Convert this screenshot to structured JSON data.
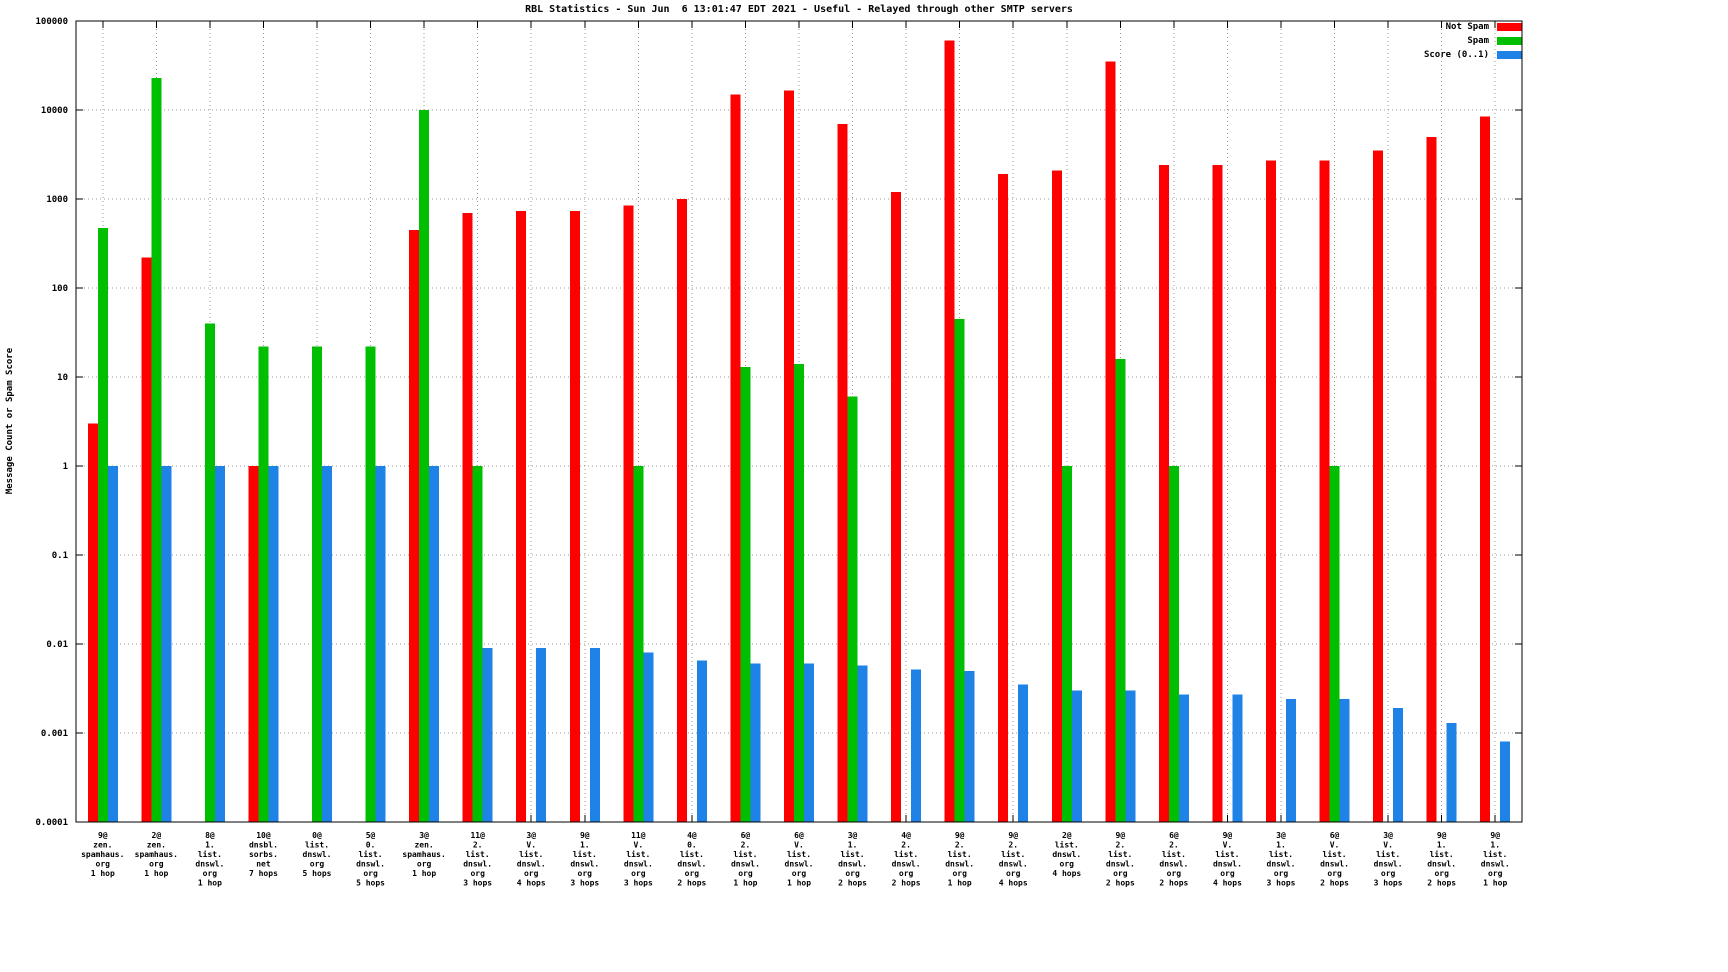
{
  "chart_data": {
    "type": "bar",
    "title": "RBL Statistics - Sun Jun  6 13:01:47 EDT 2021 - Useful - Relayed through other SMTP servers",
    "ylabel": "Message Count or Spam Score",
    "xlabel": "",
    "y_scale": "log",
    "ylim": [
      0.0001,
      100000
    ],
    "y_ticks": [
      "100000",
      "10000",
      "1000",
      "100",
      "10",
      "1",
      "0.1",
      "0.01",
      "0.001",
      "0.0001"
    ],
    "grid": true,
    "legend_position": "top-right",
    "categories": [
      [
        "9@",
        "zen.",
        "spamhaus.",
        "org",
        "1 hop"
      ],
      [
        "2@",
        "zen.",
        "spamhaus.",
        "org",
        "1 hop"
      ],
      [
        "8@",
        "1.",
        "list.",
        "dnswl.",
        "org",
        "1 hop"
      ],
      [
        "10@",
        "dnsbl.",
        "sorbs.",
        "net",
        "7 hops"
      ],
      [
        "0@",
        "list.",
        "dnswl.",
        "org",
        "5 hops"
      ],
      [
        "5@",
        "0.",
        "list.",
        "dnswl.",
        "org",
        "5 hops"
      ],
      [
        "3@",
        "zen.",
        "spamhaus.",
        "org",
        "1 hop"
      ],
      [
        "11@",
        "2.",
        "list.",
        "dnswl.",
        "org",
        "3 hops"
      ],
      [
        "3@",
        "V.",
        "list.",
        "dnswl.",
        "org",
        "4 hops"
      ],
      [
        "9@",
        "1.",
        "list.",
        "dnswl.",
        "org",
        "3 hops"
      ],
      [
        "11@",
        "V.",
        "list.",
        "dnswl.",
        "org",
        "3 hops"
      ],
      [
        "4@",
        "0.",
        "list.",
        "dnswl.",
        "org",
        "2 hops"
      ],
      [
        "6@",
        "2.",
        "list.",
        "dnswl.",
        "org",
        "1 hop"
      ],
      [
        "6@",
        "V.",
        "list.",
        "dnswl.",
        "org",
        "1 hop"
      ],
      [
        "3@",
        "1.",
        "list.",
        "dnswl.",
        "org",
        "2 hops"
      ],
      [
        "4@",
        "2.",
        "list.",
        "dnswl.",
        "org",
        "2 hops"
      ],
      [
        "9@",
        "2.",
        "list.",
        "dnswl.",
        "org",
        "1 hop"
      ],
      [
        "9@",
        "2.",
        "list.",
        "dnswl.",
        "org",
        "4 hops"
      ],
      [
        "2@",
        "list.",
        "dnswl.",
        "org",
        "4 hops"
      ],
      [
        "9@",
        "2.",
        "list.",
        "dnswl.",
        "org",
        "2 hops"
      ],
      [
        "6@",
        "2.",
        "list.",
        "dnswl.",
        "org",
        "2 hops"
      ],
      [
        "9@",
        "V.",
        "list.",
        "dnswl.",
        "org",
        "4 hops"
      ],
      [
        "3@",
        "1.",
        "list.",
        "dnswl.",
        "org",
        "3 hops"
      ],
      [
        "6@",
        "V.",
        "list.",
        "dnswl.",
        "org",
        "2 hops"
      ],
      [
        "3@",
        "V.",
        "list.",
        "dnswl.",
        "org",
        "3 hops"
      ],
      [
        "9@",
        "1.",
        "list.",
        "dnswl.",
        "org",
        "2 hops"
      ],
      [
        "9@",
        "1.",
        "list.",
        "dnswl.",
        "org",
        "1 hop"
      ]
    ],
    "series": [
      {
        "name": "Not Spam",
        "color": "#ff0000",
        "values": [
          3,
          220,
          null,
          1,
          null,
          null,
          450,
          700,
          730,
          730,
          850,
          1000,
          15000,
          16500,
          7000,
          1200,
          60000,
          1900,
          2100,
          35000,
          2400,
          2400,
          2700,
          2700,
          3500,
          5000,
          8500
        ]
      },
      {
        "name": "Spam",
        "color": "#00bf00",
        "values": [
          470,
          23000,
          40,
          22,
          22,
          22,
          10000,
          1,
          null,
          null,
          1,
          null,
          13,
          14,
          6,
          null,
          45,
          null,
          1,
          16,
          1,
          null,
          null,
          1,
          null,
          null,
          null
        ]
      },
      {
        "name": "Score (0..1)",
        "color": "#1e82e6",
        "values": [
          1,
          1,
          1,
          1,
          1,
          1,
          1,
          0.009,
          0.009,
          0.009,
          0.008,
          0.0065,
          0.006,
          0.006,
          0.0057,
          0.0052,
          0.005,
          0.0035,
          0.003,
          0.003,
          0.0027,
          0.0027,
          0.0024,
          0.0024,
          0.0019,
          0.0013,
          0.0008
        ]
      }
    ]
  }
}
